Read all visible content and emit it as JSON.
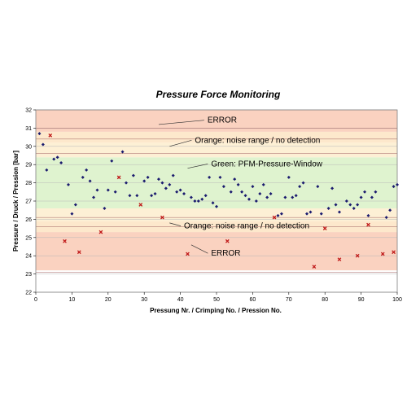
{
  "chart_data": {
    "type": "scatter",
    "title": "Pressure Force Monitoring",
    "xlabel": "Pressung Nr. / Crimping No. / Pression No.",
    "ylabel": "Pressure / Druck / Pression [bar]",
    "xlim": [
      0,
      100
    ],
    "ylim": [
      22,
      32
    ],
    "x_ticks": [
      "0",
      "10",
      "20",
      "30",
      "40",
      "50",
      "60",
      "70",
      "80",
      "90",
      "100"
    ],
    "y_ticks": [
      "22",
      "23",
      "24",
      "25",
      "26",
      "27",
      "28",
      "29",
      "30",
      "31",
      "32"
    ],
    "grid": true,
    "zones": [
      {
        "from": 23.2,
        "to": 25.3,
        "color": "#fad2c0"
      },
      {
        "from": 25.3,
        "to": 25.9,
        "color": "#fde8cc"
      },
      {
        "from": 25.9,
        "to": 26.6,
        "color": "#fdf0d5"
      },
      {
        "from": 26.6,
        "to": 29.4,
        "color": "#dff3cf"
      },
      {
        "from": 29.4,
        "to": 30.2,
        "color": "#fdf0d5"
      },
      {
        "from": 30.2,
        "to": 30.8,
        "color": "#fde8cc"
      },
      {
        "from": 30.8,
        "to": 32.0,
        "color": "#fad2c0"
      }
    ],
    "limit_lines": [
      23.1,
      25.6,
      26.1,
      29.6,
      30.4,
      31.0
    ],
    "annotations": [
      {
        "text": "ERROR",
        "x": 47.5,
        "y": 31.3,
        "arrow_to": [
          34,
          31.2
        ]
      },
      {
        "text": "Orange:  noise range / no detection",
        "x": 44,
        "y": 30.2,
        "arrow_to": [
          37,
          30.0
        ]
      },
      {
        "text": "Green: PFM-Pressure-Window",
        "x": 48.5,
        "y": 28.9,
        "arrow_to": [
          42,
          28.8
        ]
      },
      {
        "text": "Orange:  noise range / no detection",
        "x": 41,
        "y": 25.5,
        "arrow_to": [
          37,
          25.8
        ]
      },
      {
        "text": "ERROR",
        "x": 48.5,
        "y": 24.0,
        "arrow_to": [
          43,
          24.6
        ]
      }
    ],
    "series": [
      {
        "marker": "diamond",
        "color": "#1a1a6e",
        "x": [
          1,
          2,
          3,
          5,
          6,
          7,
          9,
          10,
          11,
          13,
          14,
          15,
          16,
          17,
          19,
          20,
          21,
          22,
          24,
          25,
          26,
          27,
          28,
          30,
          31,
          32,
          33,
          34,
          35,
          36,
          37,
          38,
          39,
          40,
          41,
          43,
          44,
          45,
          46,
          47,
          48,
          49,
          50,
          51,
          52,
          54,
          55,
          56,
          57,
          58,
          59,
          60,
          61,
          62,
          63,
          64,
          65,
          67,
          68,
          69,
          70,
          71,
          72,
          73,
          74,
          75,
          76,
          78,
          79,
          81,
          82,
          83,
          84,
          86,
          87,
          88,
          89,
          90,
          91,
          92,
          93,
          94,
          97,
          98,
          99,
          100
        ],
        "y": [
          30.7,
          30.1,
          28.7,
          29.3,
          29.4,
          29.1,
          27.9,
          26.3,
          26.8,
          28.3,
          28.7,
          28.1,
          27.2,
          27.6,
          26.6,
          27.6,
          29.2,
          27.5,
          29.7,
          28.0,
          27.3,
          28.4,
          27.3,
          28.1,
          28.3,
          27.3,
          27.4,
          28.2,
          28.0,
          27.7,
          27.9,
          28.4,
          27.5,
          27.6,
          27.4,
          27.2,
          27.0,
          27.0,
          27.1,
          27.3,
          28.3,
          26.9,
          26.7,
          28.3,
          27.8,
          27.5,
          28.2,
          27.9,
          27.5,
          27.3,
          27.1,
          27.8,
          27.0,
          27.4,
          27.9,
          27.2,
          27.4,
          26.2,
          26.3,
          27.2,
          28.3,
          27.2,
          27.3,
          27.8,
          28.0,
          26.3,
          26.4,
          27.8,
          26.3,
          26.6,
          27.7,
          26.8,
          26.4,
          27.0,
          26.8,
          26.6,
          26.8,
          27.2,
          27.5,
          26.2,
          27.2,
          27.5,
          26.1,
          26.5,
          27.8,
          27.9
        ]
      },
      {
        "marker": "x",
        "color": "#c01818",
        "x": [
          4,
          8,
          12,
          18,
          23,
          29,
          35,
          42,
          53,
          66,
          77,
          80,
          84,
          89,
          92,
          96,
          99
        ],
        "y": [
          30.6,
          24.8,
          24.2,
          25.3,
          28.3,
          26.8,
          26.1,
          24.1,
          24.8,
          26.1,
          23.4,
          25.5,
          23.8,
          24.0,
          25.7,
          24.1,
          24.2
        ]
      }
    ]
  }
}
